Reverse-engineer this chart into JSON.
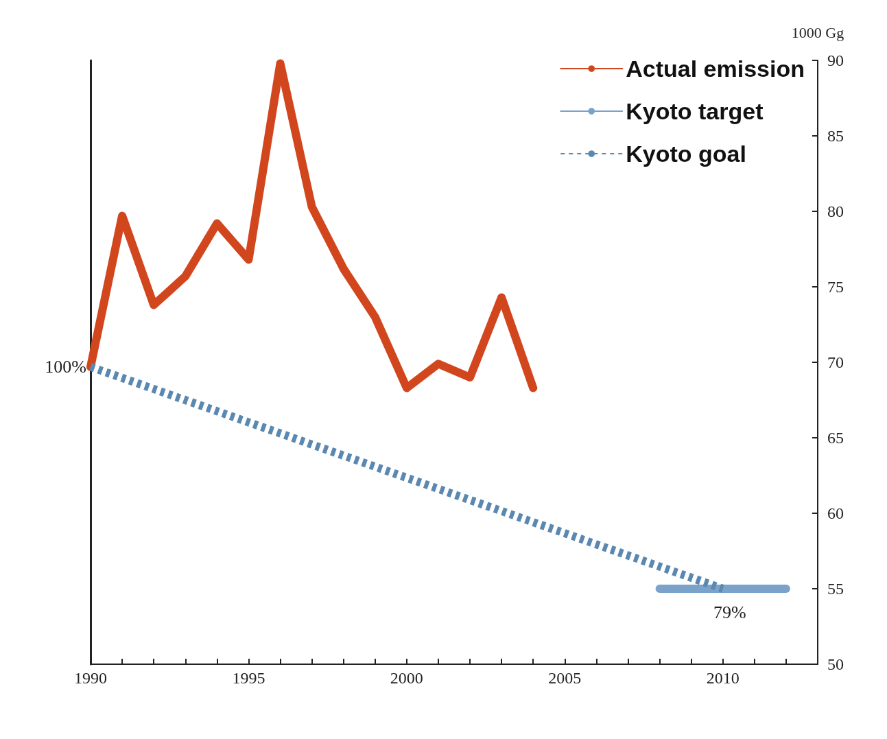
{
  "chart_data": {
    "type": "line",
    "ylabel": "1000 Gg",
    "xlim": [
      1990,
      2013
    ],
    "xticks": [
      1990,
      {
        "value": 1991,
        "label": null
      },
      {
        "value": 1992,
        "label": null
      },
      {
        "value": 1993,
        "label": null
      },
      {
        "value": 1994,
        "label": null
      },
      1995,
      {
        "value": 1996,
        "label": null
      },
      {
        "value": 1997,
        "label": null
      },
      {
        "value": 1998,
        "label": null
      },
      {
        "value": 1999,
        "label": null
      },
      2000,
      {
        "value": 2001,
        "label": null
      },
      {
        "value": 2002,
        "label": null
      },
      {
        "value": 2003,
        "label": null
      },
      {
        "value": 2004,
        "label": null
      },
      2005,
      {
        "value": 2006,
        "label": null
      },
      {
        "value": 2007,
        "label": null
      },
      {
        "value": 2008,
        "label": null
      },
      {
        "value": 2009,
        "label": null
      },
      2010,
      {
        "value": 2011,
        "label": null
      },
      {
        "value": 2012,
        "label": null
      }
    ],
    "ylim": [
      50,
      90
    ],
    "yticks": [
      50,
      55,
      60,
      65,
      70,
      75,
      80,
      85,
      90
    ],
    "legend": "top right",
    "grid": false,
    "series": [
      {
        "name": "Actual emission",
        "color": "#d2461e",
        "line_style": "solid",
        "x": [
          1990,
          1991,
          1992,
          1993,
          1994,
          1995,
          1996,
          1997,
          1998,
          1999,
          2000,
          2001,
          2002,
          2003,
          2004
        ],
        "values": [
          69.7,
          79.7,
          73.8,
          75.7,
          79.2,
          76.8,
          89.8,
          80.3,
          76.2,
          73.0,
          68.3,
          69.9,
          69.0,
          74.3,
          68.3
        ]
      },
      {
        "name": "Kyoto target",
        "color": "#7ba3c9",
        "line_style": "solid",
        "x": [
          2008,
          2012
        ],
        "values": [
          55,
          55
        ]
      },
      {
        "name": "Kyoto goal",
        "color": "#5b88b0",
        "line_style": "dotted",
        "x": [
          1990,
          2010
        ],
        "values": [
          69.7,
          55
        ]
      }
    ],
    "annotations": [
      {
        "text": "100%",
        "x": 1990,
        "y": 69.7
      },
      {
        "text": "79%",
        "x": 2010,
        "y": 55
      }
    ]
  }
}
